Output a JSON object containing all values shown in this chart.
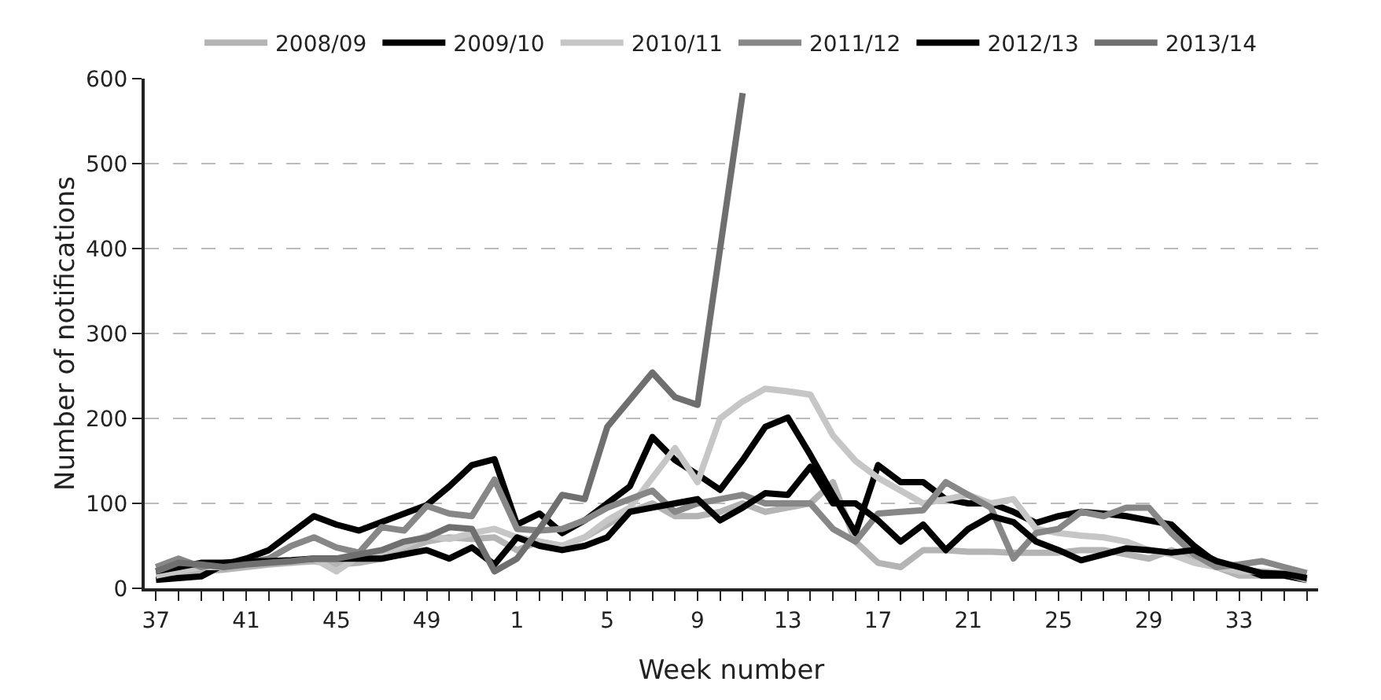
{
  "chart_data": {
    "type": "line",
    "xlabel": "Week number",
    "ylabel": "Number of notifications",
    "categories": [
      "37",
      null,
      null,
      null,
      "41",
      null,
      null,
      null,
      "45",
      null,
      null,
      null,
      "49",
      null,
      null,
      null,
      "1",
      null,
      null,
      null,
      "5",
      null,
      null,
      null,
      "9",
      null,
      null,
      null,
      "13",
      null,
      null,
      null,
      "17",
      null,
      null,
      null,
      "21",
      null,
      null,
      null,
      "25",
      null,
      null,
      null,
      "29",
      null,
      null,
      null,
      "33",
      null,
      null,
      null
    ],
    "ylim": [
      0,
      600
    ],
    "yticks": [
      0,
      100,
      200,
      300,
      400,
      500,
      600
    ],
    "grid": "y",
    "legend": "top",
    "marker": "none",
    "line_style": "solid",
    "series": [
      {
        "name": "2008/09",
        "color": "#b4b4b4",
        "values": [
          15,
          18,
          20,
          22,
          25,
          28,
          30,
          32,
          28,
          30,
          35,
          45,
          55,
          60,
          58,
          60,
          45,
          55,
          50,
          60,
          75,
          90,
          100,
          85,
          85,
          90,
          100,
          90,
          95,
          100,
          125,
          55,
          30,
          25,
          45,
          45,
          43,
          43,
          42,
          42,
          42,
          45,
          45,
          40,
          35,
          45,
          35,
          25,
          15,
          15,
          15,
          10
        ]
      },
      {
        "name": "2009/10",
        "color": "#000000",
        "values": [
          10,
          12,
          14,
          28,
          35,
          45,
          65,
          85,
          75,
          68,
          78,
          88,
          98,
          120,
          145,
          152,
          75,
          88,
          65,
          80,
          100,
          120,
          178,
          151,
          134,
          116,
          151,
          190,
          201,
          157,
          110,
          65,
          145,
          125,
          125,
          105,
          100,
          100,
          90,
          77,
          85,
          90,
          88,
          85,
          80,
          75,
          50,
          30,
          25,
          15,
          15,
          10
        ]
      },
      {
        "name": "2010/11",
        "color": "#c6c6c6",
        "values": [
          15,
          20,
          25,
          25,
          28,
          30,
          32,
          35,
          20,
          38,
          42,
          50,
          62,
          58,
          65,
          70,
          60,
          55,
          50,
          60,
          80,
          95,
          130,
          165,
          125,
          200,
          220,
          235,
          232,
          228,
          180,
          150,
          130,
          115,
          100,
          105,
          110,
          100,
          105,
          70,
          65,
          62,
          60,
          55,
          45,
          40,
          30,
          25,
          20,
          20,
          18,
          10
        ]
      },
      {
        "name": "2011/12",
        "color": "#878787",
        "values": [
          25,
          35,
          25,
          30,
          30,
          35,
          50,
          60,
          48,
          42,
          72,
          68,
          97,
          88,
          85,
          128,
          70,
          68,
          70,
          80,
          95,
          105,
          115,
          90,
          100,
          105,
          110,
          100,
          100,
          100,
          70,
          55,
          88,
          90,
          92,
          125,
          110,
          95,
          35,
          65,
          70,
          90,
          85,
          95,
          95,
          65,
          40,
          25,
          28,
          32,
          25,
          18
        ]
      },
      {
        "name": "2012/13",
        "color": "#000000",
        "values": [
          20,
          25,
          30,
          30,
          32,
          32,
          33,
          35,
          35,
          35,
          35,
          40,
          45,
          35,
          48,
          28,
          60,
          50,
          45,
          50,
          60,
          90,
          95,
          100,
          105,
          80,
          95,
          112,
          110,
          143,
          100,
          100,
          80,
          55,
          75,
          45,
          70,
          85,
          78,
          55,
          45,
          33,
          40,
          47,
          45,
          42,
          45,
          32,
          25,
          18,
          17,
          12
        ]
      },
      {
        "name": "2013/14",
        "color": "#6f6f6f",
        "values": [
          20,
          30,
          28,
          25,
          28,
          30,
          32,
          35,
          35,
          40,
          45,
          55,
          60,
          72,
          70,
          20,
          35,
          70,
          110,
          105,
          190,
          222,
          254,
          225,
          216,
          400,
          583,
          null,
          null,
          null,
          null,
          null,
          null,
          null,
          null,
          null,
          null,
          null,
          null,
          null,
          null,
          null,
          null,
          null,
          null,
          null,
          null,
          null,
          null,
          null,
          null,
          null
        ]
      }
    ]
  }
}
